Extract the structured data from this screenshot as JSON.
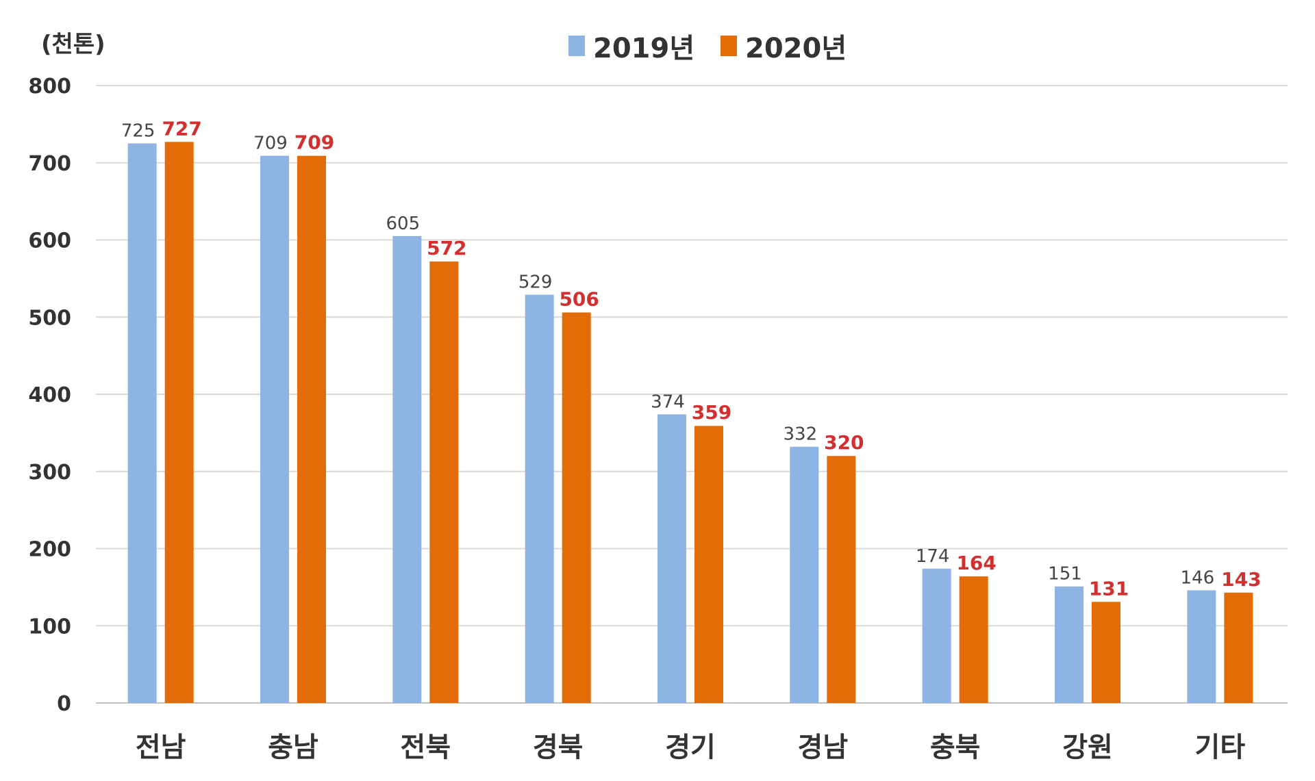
{
  "chart_data": {
    "type": "bar",
    "unit_label": "(천톤)",
    "categories": [
      "전남",
      "충남",
      "전북",
      "경북",
      "경기",
      "경남",
      "충북",
      "강원",
      "기타"
    ],
    "series": [
      {
        "name": "2019년",
        "color": "#8db4e2",
        "label_color": "#444444",
        "values": [
          725,
          709,
          605,
          529,
          374,
          332,
          174,
          151,
          146
        ]
      },
      {
        "name": "2020년",
        "color": "#e36c09",
        "label_color": "#d32f2f",
        "values": [
          727,
          709,
          572,
          506,
          359,
          320,
          164,
          131,
          143
        ]
      }
    ],
    "y_ticks": [
      "800",
      "700",
      "600",
      "500",
      "400",
      "300",
      "200",
      "100",
      "0"
    ],
    "ylim": [
      0,
      800
    ],
    "grid": true,
    "legend_position": "top-center",
    "xlabel": "",
    "ylabel": ""
  }
}
